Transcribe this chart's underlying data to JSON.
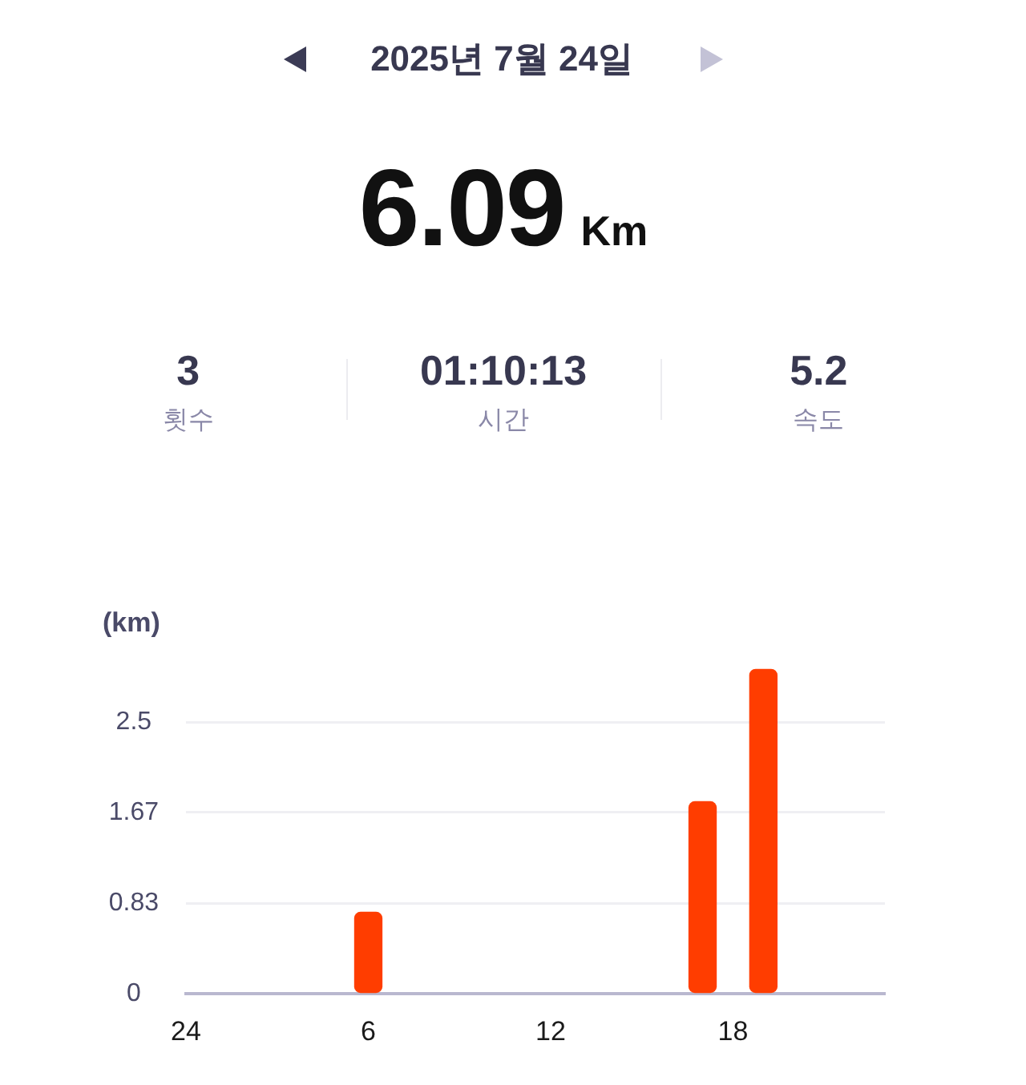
{
  "chart_data": {
    "type": "bar",
    "title": "2025년 7월 24일",
    "annotations": [
      "6.09",
      "Km",
      "3",
      "횟수",
      "01:10:13",
      "시간",
      "5.2",
      "속도"
    ],
    "ylabel": "(km)",
    "categories": [
      "24",
      null,
      null,
      null,
      null,
      null,
      "6",
      null,
      null,
      null,
      null,
      null,
      "12",
      null,
      null,
      null,
      null,
      null,
      "18",
      null,
      null,
      null,
      null,
      null
    ],
    "values": [
      null,
      null,
      null,
      null,
      null,
      null,
      0.75,
      null,
      null,
      null,
      null,
      null,
      null,
      null,
      null,
      null,
      null,
      1.77,
      null,
      2.99,
      null,
      null,
      null,
      null
    ],
    "color": "#ff3d00",
    "ylim": [
      0,
      3
    ],
    "yticks": [
      0,
      0.83,
      1.67,
      2.5
    ],
    "grid": "y"
  }
}
